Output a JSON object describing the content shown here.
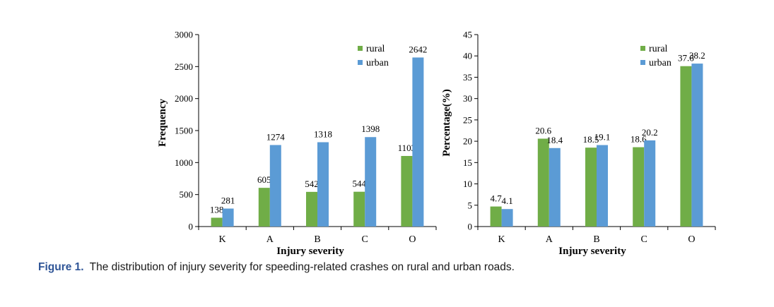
{
  "chart_data": [
    {
      "type": "bar",
      "categories": [
        "K",
        "A",
        "B",
        "C",
        "O"
      ],
      "series": [
        {
          "name": "rural",
          "values": [
            138,
            605,
            542,
            544,
            1103
          ],
          "color": "#70ad47"
        },
        {
          "name": "urban",
          "values": [
            281,
            1274,
            1318,
            1398,
            2642
          ],
          "color": "#5b9bd5"
        }
      ],
      "data_labels": [
        [
          "138",
          "605",
          "542",
          "544",
          "1103"
        ],
        [
          "281",
          "1274",
          "1318",
          "1398",
          "2642"
        ]
      ],
      "xlabel": "Injury severity",
      "ylabel": "Frequency",
      "ylim": [
        0,
        3000
      ],
      "yticks": [
        0,
        500,
        1000,
        1500,
        2000,
        2500,
        3000
      ],
      "ytick_labels": [
        "0",
        "500",
        "1000",
        "1500",
        "2000",
        "2500",
        "3000"
      ],
      "grid": false,
      "legend": "top-right"
    },
    {
      "type": "bar",
      "categories": [
        "K",
        "A",
        "B",
        "C",
        "O"
      ],
      "series": [
        {
          "name": "rural",
          "values": [
            4.7,
            20.6,
            18.5,
            18.6,
            37.6
          ],
          "color": "#70ad47"
        },
        {
          "name": "urban",
          "values": [
            4.1,
            18.4,
            19.1,
            20.2,
            38.2
          ],
          "color": "#5b9bd5"
        }
      ],
      "data_labels": [
        [
          "4.7",
          "20.6",
          "18.5",
          "18.6",
          "37.6"
        ],
        [
          "4.1",
          "18.4",
          "19.1",
          "20.2",
          "38.2"
        ]
      ],
      "xlabel": "Injury severity",
      "ylabel": "Percentage(%)",
      "ylim": [
        0,
        45
      ],
      "yticks": [
        0,
        5,
        10,
        15,
        20,
        25,
        30,
        35,
        40,
        45
      ],
      "ytick_labels": [
        "0",
        "5",
        "10",
        "15",
        "20",
        "25",
        "30",
        "35",
        "40",
        "45"
      ],
      "grid": false,
      "legend": "top-right"
    }
  ],
  "caption": {
    "label": "Figure 1.",
    "text": "The distribution of injury severity for speeding-related crashes on rural and urban roads."
  }
}
